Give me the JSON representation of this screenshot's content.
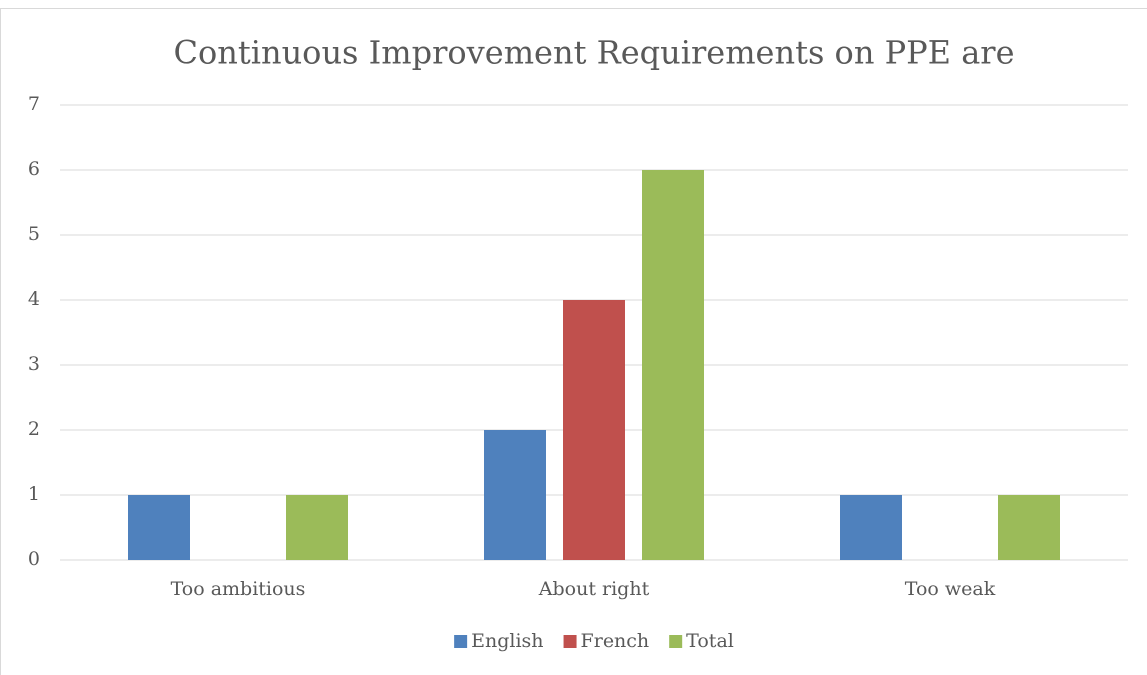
{
  "chart_data": {
    "type": "bar",
    "title": "Continuous Improvement Requirements on PPE are",
    "categories": [
      "Too ambitious",
      "About right",
      "Too weak"
    ],
    "series": [
      {
        "name": "English",
        "color": "#4f81bd",
        "values": [
          1,
          2,
          1
        ]
      },
      {
        "name": "French",
        "color": "#c0504d",
        "values": [
          0,
          4,
          0
        ]
      },
      {
        "name": "Total",
        "color": "#9bbb59",
        "values": [
          1,
          6,
          1
        ]
      }
    ],
    "ylim": [
      0,
      7
    ],
    "yticks": [
      0,
      1,
      2,
      3,
      4,
      5,
      6,
      7
    ],
    "grid": true,
    "legend": "bottom"
  }
}
